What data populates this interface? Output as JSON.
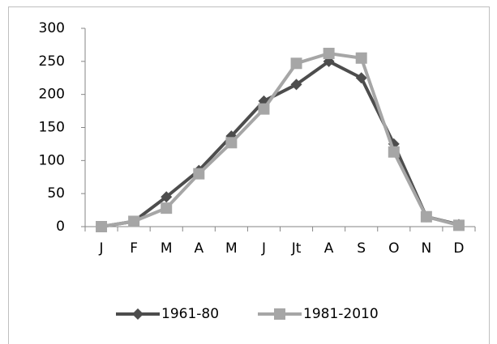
{
  "chart_data": {
    "type": "line",
    "categories": [
      "J",
      "F",
      "M",
      "A",
      "M",
      "J",
      "Jt",
      "A",
      "S",
      "O",
      "N",
      "D"
    ],
    "series": [
      {
        "name": "1961-80",
        "color": "#4d4d4d",
        "marker": "diamond",
        "values": [
          0,
          8,
          45,
          85,
          137,
          190,
          215,
          250,
          225,
          125,
          15,
          3
        ]
      },
      {
        "name": "1981-2010",
        "color": "#a6a6a6",
        "marker": "square",
        "values": [
          0,
          8,
          28,
          80,
          127,
          178,
          247,
          262,
          255,
          113,
          15,
          2
        ]
      }
    ],
    "ylim": [
      0,
      300
    ],
    "yticks": [
      0,
      50,
      100,
      150,
      200,
      250,
      300
    ],
    "grid": false,
    "legend": "bottom"
  }
}
